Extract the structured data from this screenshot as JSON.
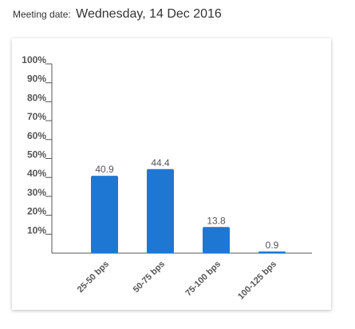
{
  "header": {
    "meeting_label": "Meeting date:",
    "meeting_value": "Wednesday, 14 Dec 2016"
  },
  "chart_data": {
    "type": "bar",
    "categories": [
      "25-50 bps",
      "50-75 bps",
      "75-100 bps",
      "100-125 bps"
    ],
    "values": [
      40.9,
      44.4,
      13.8,
      0.9
    ],
    "data_labels": [
      "40.9",
      "44.4",
      "13.8",
      "0.9"
    ],
    "yticks": [
      "10%",
      "20%",
      "30%",
      "40%",
      "50%",
      "60%",
      "70%",
      "80%",
      "90%",
      "100%"
    ],
    "ylim": [
      0,
      100
    ],
    "grid": false,
    "legend": "none",
    "bar_color": "#1f77d4",
    "axis_color": "#555555"
  }
}
